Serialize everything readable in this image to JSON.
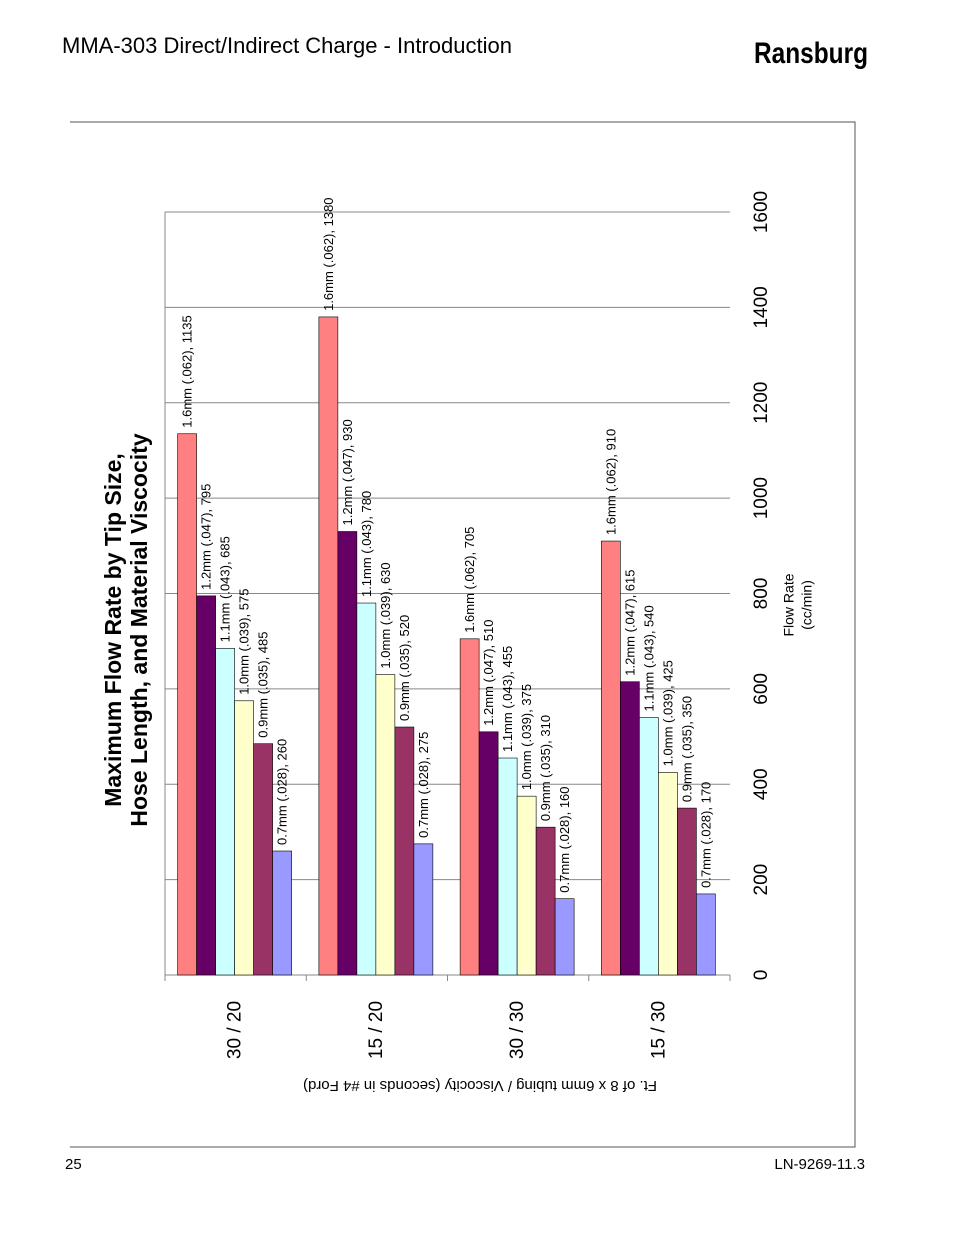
{
  "header": {
    "title": "MMA-303 Direct/Indirect Charge - Introduction",
    "brand": "Ransburg"
  },
  "footer": {
    "page": "25",
    "doc": "LN-9269-11.3"
  },
  "chart_data": {
    "type": "bar",
    "title": [
      "Maximum Flow Rate by Tip Size,",
      "Hose Length, and Material Viscocity"
    ],
    "xlabel": "Ft. of 8 x 6mm tubing / Viscocity (seconds in #4 Ford)",
    "ylabel": [
      "Flow Rate",
      "(cc/min)"
    ],
    "categories": [
      "30 / 20",
      "15 / 20",
      "30 / 30",
      "15 / 30"
    ],
    "ylim": [
      0,
      1600
    ],
    "yticks": [
      0,
      200,
      400,
      600,
      800,
      1000,
      1200,
      1400,
      1600
    ],
    "grid": true,
    "series": [
      {
        "name": "1.6mm (.062)",
        "color": "#ff8080",
        "values": [
          1135,
          1380,
          705,
          910
        ],
        "value_labels": [
          "1.6mm (.062), 1135",
          "1.6mm (.062), 1380",
          "1.6mm (.062), 705",
          "1.6mm (.062), 910"
        ]
      },
      {
        "name": "1.2mm (.047)",
        "color": "#660066",
        "values": [
          795,
          930,
          510,
          615
        ],
        "value_labels": [
          "1.2mm (.047), 795",
          "1.2mm (.047), 930",
          "1.2mm (.047), 510",
          "1.2mm (.047), 615"
        ]
      },
      {
        "name": "1.1mm (.043)",
        "color": "#ccffff",
        "values": [
          685,
          780,
          455,
          540
        ],
        "value_labels": [
          "1.1mm (.043), 685",
          "1.1mm (.043), 780",
          "1.1mm (.043), 455",
          "1.1mm (.043), 540"
        ]
      },
      {
        "name": "1.0mm (.039)",
        "color": "#ffffcc",
        "values": [
          575,
          630,
          375,
          425
        ],
        "value_labels": [
          "1.0mm (.039), 575",
          "1.0mm (.039), 630",
          "1.0mm (.039), 375",
          "1.0mm (.039), 425"
        ]
      },
      {
        "name": "0.9mm (.035)",
        "color": "#993366",
        "values": [
          485,
          520,
          310,
          350
        ],
        "value_labels": [
          "0.9mm (.035), 485",
          "0.9mm (.035), 520",
          "0.9mm (.035), 310",
          "0.9mm (.035), 350"
        ]
      },
      {
        "name": "0.7mm (.028)",
        "color": "#9999ff",
        "values": [
          260,
          275,
          160,
          170
        ],
        "value_labels": [
          "0.7mm (.028), 260",
          "0.7mm (.028), 275",
          "0.7mm (.028), 160",
          "0.7mm (.028), 170"
        ]
      }
    ]
  }
}
